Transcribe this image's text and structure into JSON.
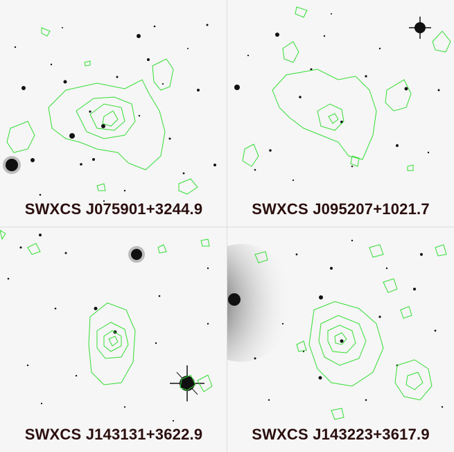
{
  "colors": {
    "background": "#f6f6f6",
    "sources": "#111111",
    "contours": "#33dd33",
    "label": "#2b0e0e"
  },
  "panels": [
    {
      "label": "SWXCS J075901+3244.9"
    },
    {
      "label": "SWXCS J095207+1021.7"
    },
    {
      "label": "SWXCS J143131+3622.9"
    },
    {
      "label": "SWXCS J143223+3617.9"
    }
  ]
}
